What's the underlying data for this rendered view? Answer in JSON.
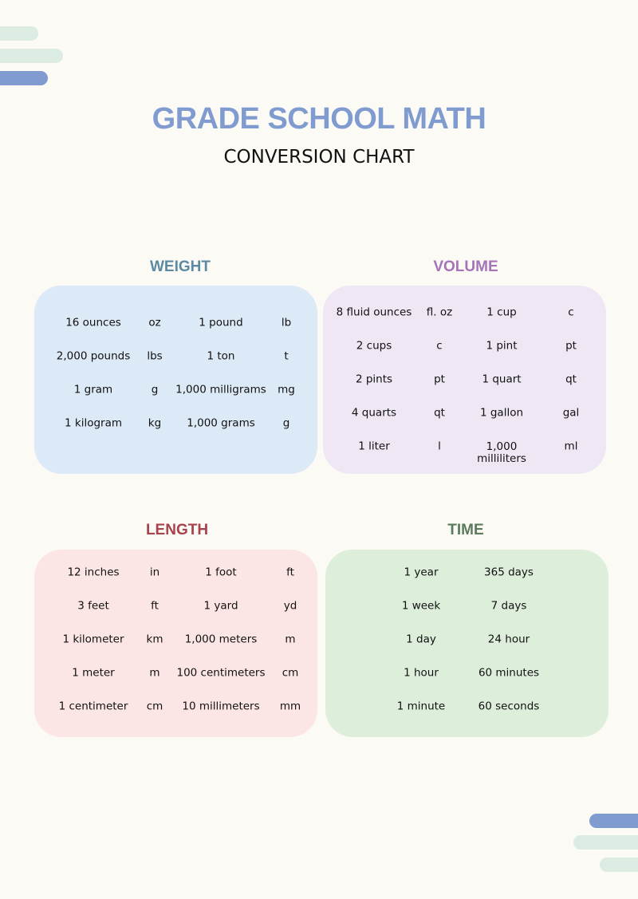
{
  "title": "GRADE SCHOOL MATH",
  "subtitle": "CONVERSION CHART",
  "colors": {
    "background": "#fbfaf5",
    "title": "#7f9bd0",
    "weight": "#5c8aa3",
    "volume": "#a673b8",
    "length": "#a8424c",
    "time": "#5b7b5c",
    "weight_box": "#dce9f6",
    "volume_box": "#efe8f4",
    "length_box": "#fce6e5",
    "time_box": "#ddefdb"
  },
  "sections": {
    "weight": {
      "heading": "WEIGHT",
      "rows": [
        [
          "16 ounces",
          "oz",
          "1 pound",
          "lb"
        ],
        [
          "2,000 pounds",
          "lbs",
          "1 ton",
          "t"
        ],
        [
          "1 gram",
          "g",
          "1,000 milligrams",
          "mg"
        ],
        [
          "1 kilogram",
          "kg",
          "1,000 grams",
          "g"
        ]
      ]
    },
    "volume": {
      "heading": "VOLUME",
      "rows": [
        [
          "8 fluid ounces",
          "fl. oz",
          "1 cup",
          "c"
        ],
        [
          "2 cups",
          "c",
          "1 pint",
          "pt"
        ],
        [
          "2 pints",
          "pt",
          "1 quart",
          "qt"
        ],
        [
          "4 quarts",
          "qt",
          "1 gallon",
          "gal"
        ],
        [
          "1 liter",
          "l",
          "1,000\nmilliliters",
          "ml"
        ]
      ]
    },
    "length": {
      "heading": "LENGTH",
      "rows": [
        [
          "12 inches",
          "in",
          "1 foot",
          "ft"
        ],
        [
          "3 feet",
          "ft",
          "1 yard",
          "yd"
        ],
        [
          "1 kilometer",
          "km",
          "1,000 meters",
          "m"
        ],
        [
          "1 meter",
          "m",
          "100 centimeters",
          "cm"
        ],
        [
          "1 centimeter",
          "cm",
          "10 millimeters",
          "mm"
        ]
      ]
    },
    "time": {
      "heading": "TIME",
      "rows": [
        [
          "1 year",
          "365 days"
        ],
        [
          "1 week",
          "7 days"
        ],
        [
          "1 day",
          "24 hour"
        ],
        [
          "1 hour",
          "60 minutes"
        ],
        [
          "1 minute",
          "60 seconds"
        ]
      ]
    }
  }
}
